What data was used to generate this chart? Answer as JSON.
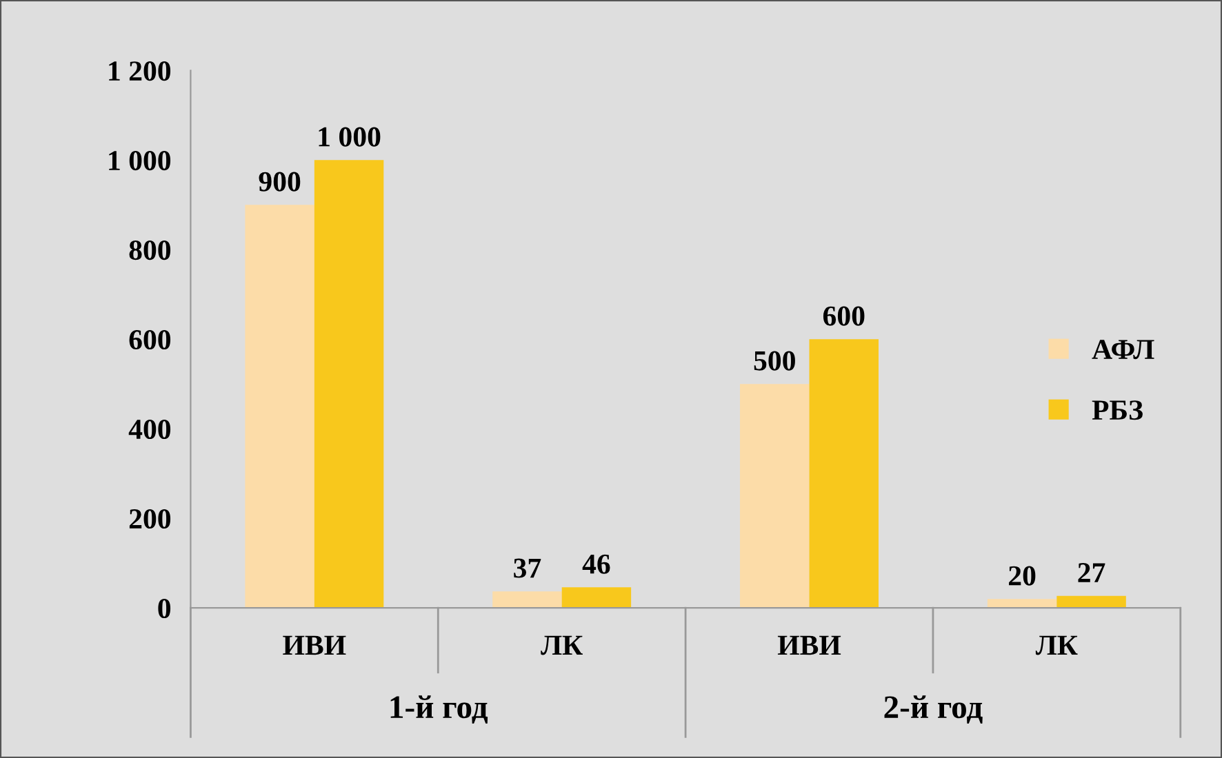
{
  "chart_data": {
    "type": "bar",
    "categories": [
      "ИВИ",
      "ЛК",
      "ИВИ",
      "ЛК"
    ],
    "series": [
      {
        "name": "АФЛ",
        "color": "#fcdca8",
        "values": [
          900,
          37,
          500,
          20
        ],
        "value_labels": [
          "900",
          "37",
          "500",
          "20"
        ]
      },
      {
        "name": "РБЗ",
        "color": "#f8c81c",
        "values": [
          1000,
          46,
          600,
          27
        ],
        "value_labels": [
          "1 000",
          "46",
          "600",
          "27"
        ]
      }
    ],
    "ylim": [
      0,
      1200
    ],
    "yticks": [
      0,
      200,
      400,
      600,
      800,
      {
        "value": 1000,
        "label": "1 000"
      },
      {
        "value": 1200,
        "label": "1 200"
      }
    ],
    "annotations": [
      "1-й год",
      "2-й год"
    ],
    "grid": false,
    "legend": "right"
  }
}
